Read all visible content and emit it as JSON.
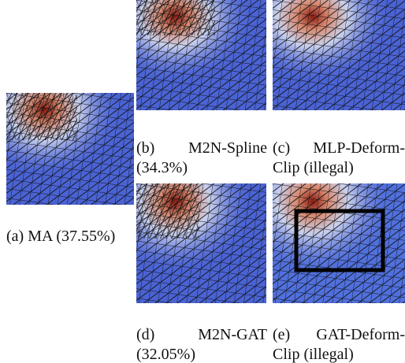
{
  "panels": [
    {
      "caption": "(a) MA (37.55%)"
    },
    {
      "caption": "(b) M2N-Spline (34.3%)"
    },
    {
      "caption": "(c) MLP-Deform-Clip (illegal)"
    },
    {
      "caption": "(d) M2N-GAT (32.05%)"
    },
    {
      "caption": "(e) GAT-Deform-Clip (illegal)"
    }
  ]
}
